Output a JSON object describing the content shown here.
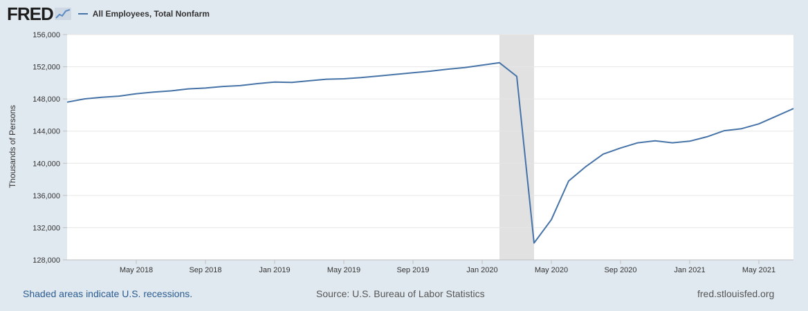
{
  "header": {
    "logo_text": "FRED",
    "series_title": "All Employees, Total Nonfarm"
  },
  "colors": {
    "page_bg": "#e1e9f0",
    "plot_bg": "#ffffff",
    "series_line": "#4572a7",
    "recession": "#e1e1e1",
    "grid": "#e6e6e6"
  },
  "chart_data": {
    "type": "line",
    "title": "All Employees, Total Nonfarm",
    "xlabel": "",
    "ylabel": "Thousands of Persons",
    "ylim": [
      128000,
      156000
    ],
    "y_ticks": [
      128000,
      132000,
      136000,
      140000,
      144000,
      148000,
      152000,
      156000
    ],
    "y_tick_labels": [
      "128,000",
      "132,000",
      "136,000",
      "140,000",
      "144,000",
      "148,000",
      "152,000",
      "156,000"
    ],
    "x_range": [
      "2018-01",
      "2021-07"
    ],
    "x_ticks": [
      "2018-05",
      "2018-09",
      "2019-01",
      "2019-05",
      "2019-09",
      "2020-01",
      "2020-05",
      "2020-09",
      "2021-01",
      "2021-05"
    ],
    "x_tick_labels": [
      "May 2018",
      "Sep 2018",
      "Jan 2019",
      "May 2019",
      "Sep 2019",
      "Jan 2020",
      "May 2020",
      "Sep 2020",
      "Jan 2021",
      "May 2021"
    ],
    "recessions": [
      {
        "start": "2020-02",
        "end": "2020-04"
      }
    ],
    "series": [
      {
        "name": "All Employees, Total Nonfarm",
        "x": [
          "2018-01",
          "2018-02",
          "2018-03",
          "2018-04",
          "2018-05",
          "2018-06",
          "2018-07",
          "2018-08",
          "2018-09",
          "2018-10",
          "2018-11",
          "2018-12",
          "2019-01",
          "2019-02",
          "2019-03",
          "2019-04",
          "2019-05",
          "2019-06",
          "2019-07",
          "2019-08",
          "2019-09",
          "2019-10",
          "2019-11",
          "2019-12",
          "2020-01",
          "2020-02",
          "2020-03",
          "2020-04",
          "2020-05",
          "2020-06",
          "2020-07",
          "2020-08",
          "2020-09",
          "2020-10",
          "2020-11",
          "2020-12",
          "2021-01",
          "2021-02",
          "2021-03",
          "2021-04",
          "2021-05",
          "2021-06",
          "2021-07"
        ],
        "values": [
          147600,
          148000,
          148200,
          148350,
          148650,
          148850,
          149000,
          149250,
          149350,
          149550,
          149650,
          149900,
          150100,
          150050,
          150250,
          150450,
          150500,
          150650,
          150850,
          151050,
          151250,
          151450,
          151700,
          151900,
          152200,
          152500,
          150800,
          130100,
          133000,
          137800,
          139600,
          141150,
          141900,
          142550,
          142800,
          142550,
          142750,
          143300,
          144050,
          144300,
          144900,
          145850,
          146800
        ]
      }
    ]
  },
  "footer": {
    "recession_note": "Shaded areas indicate U.S. recessions.",
    "source": "Source: U.S. Bureau of Labor Statistics",
    "site": "fred.stlouisfed.org"
  }
}
